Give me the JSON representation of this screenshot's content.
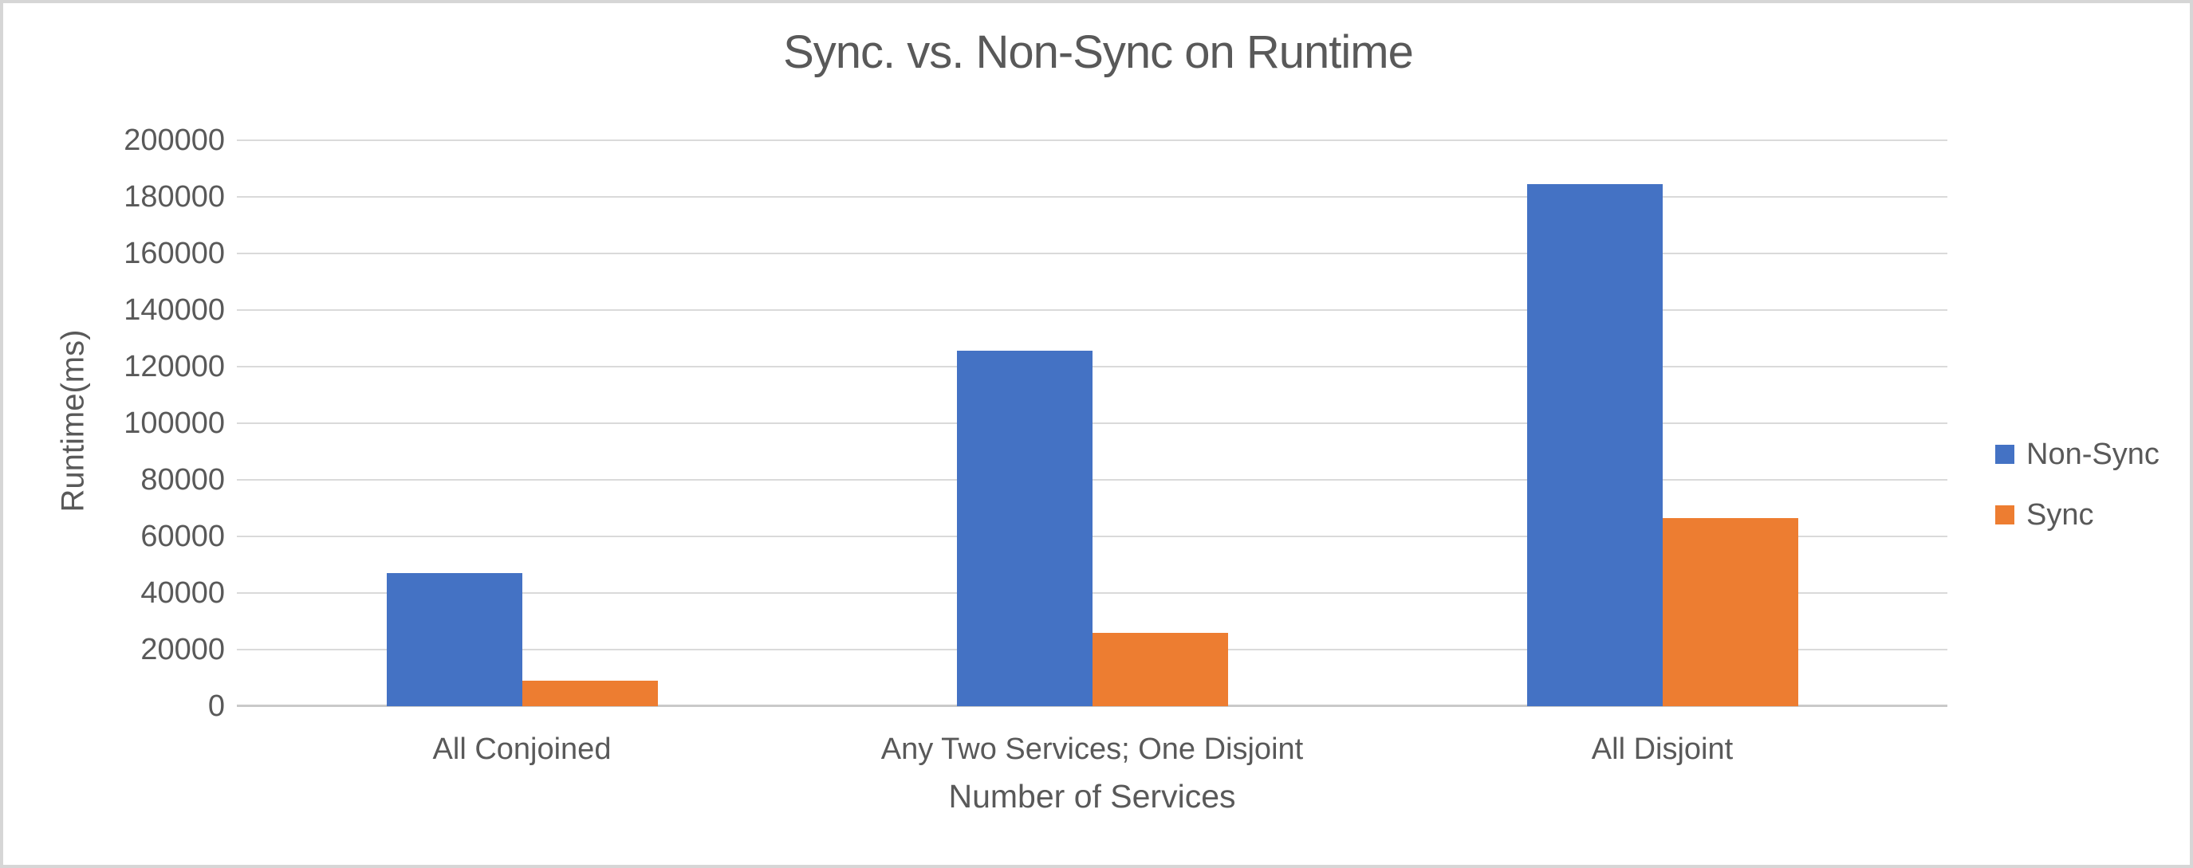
{
  "window": {
    "background_color": "#ffffff",
    "border_color": "#d6d6d6"
  },
  "chart_data": {
    "type": "bar",
    "title": "Sync. vs. Non-Sync on Runtime",
    "xlabel": "Number of Services",
    "ylabel": "Runtime(ms)",
    "categories": [
      "All Conjoined",
      "Any Two Services; One Disjoint",
      "All Disjoint"
    ],
    "series": [
      {
        "name": "Non-Sync",
        "color": "#4472C4",
        "values": [
          47000,
          125500,
          184500
        ]
      },
      {
        "name": "Sync",
        "color": "#ED7D31",
        "values": [
          9000,
          26000,
          66500
        ]
      }
    ],
    "ylim": [
      0,
      200000
    ],
    "ytick_step": 20000,
    "yticks": [
      0,
      20000,
      40000,
      60000,
      80000,
      100000,
      120000,
      140000,
      160000,
      180000,
      200000
    ],
    "grid": true,
    "gridline_color": "#dadada",
    "axis_line_color": "#c9c9c9",
    "text_color": "#595959",
    "legend_position": "right"
  }
}
